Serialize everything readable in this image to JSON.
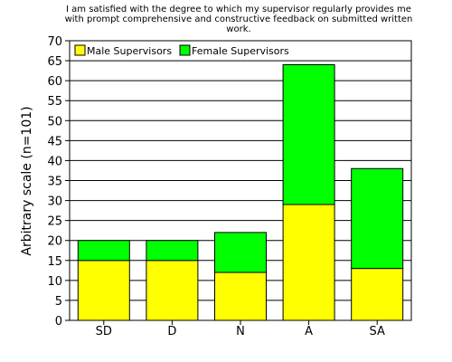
{
  "chart_data": {
    "type": "bar",
    "stacked": true,
    "title_lines": [
      "I am satisfied with the degree to which my supervisor regularly provides me",
      "with prompt comprehensive and constructive feedback on submitted written",
      "work."
    ],
    "ylabel": "Arbitrary scale (n=101)",
    "xlabel": "",
    "categories": [
      "SD",
      "D",
      "N",
      "A",
      "SA"
    ],
    "series": [
      {
        "name": "Male Supervisors",
        "color": "#ffff00",
        "values": [
          15,
          15,
          12,
          29,
          13
        ]
      },
      {
        "name": "Female Supervisors",
        "color": "#00ff00",
        "values": [
          5,
          5,
          10,
          35,
          25
        ]
      }
    ],
    "ylim": [
      0,
      70
    ],
    "yticks": [
      "0",
      "5",
      "10",
      "15",
      "20",
      "25",
      "30",
      "35",
      "40",
      "45",
      "50",
      "55",
      "60",
      "65",
      "70"
    ],
    "grid": "horizontal",
    "legend_position": "top-left"
  }
}
